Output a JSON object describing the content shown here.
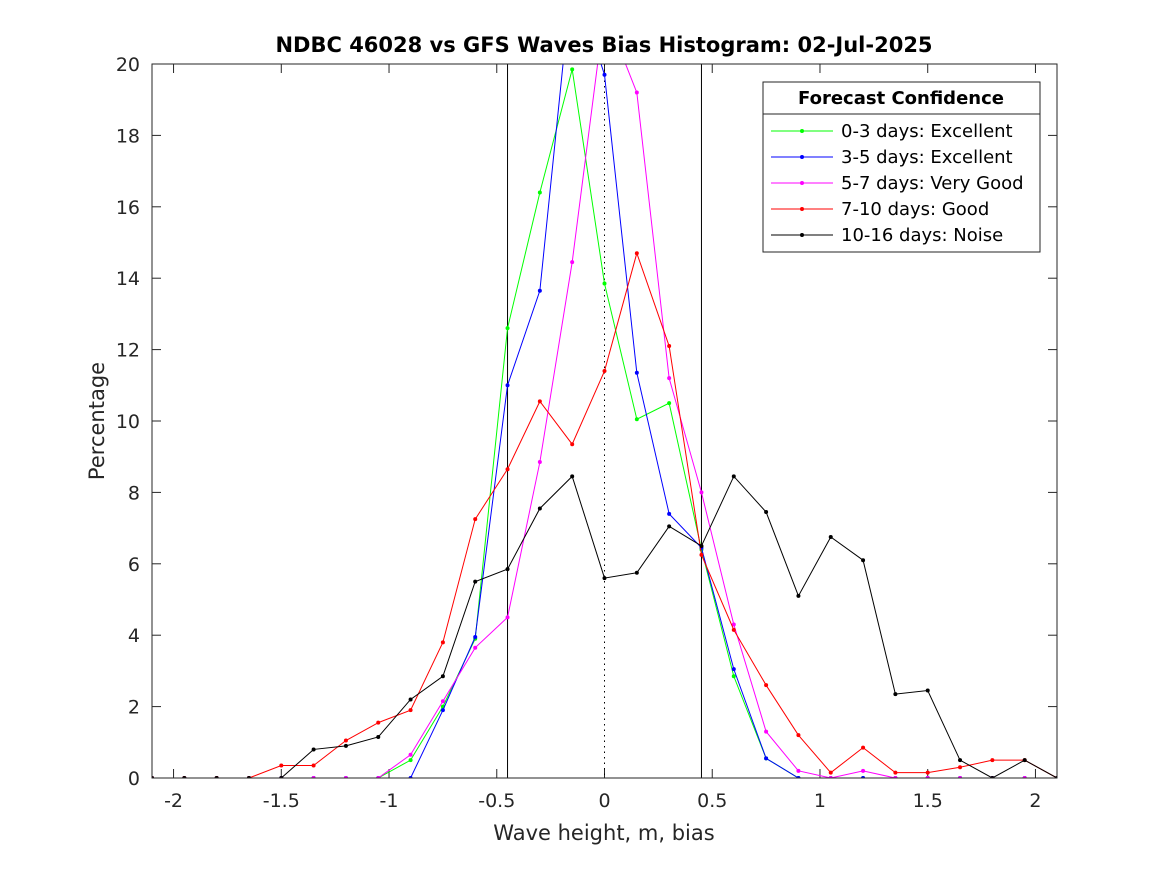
{
  "chart_data": {
    "type": "line",
    "title": "NDBC 46028 vs GFS Waves Bias Histogram: 02-Jul-2025",
    "xlabel": "Wave height, m, bias",
    "ylabel": "Percentage",
    "xlim": [
      -2.1,
      2.1
    ],
    "ylim": [
      0,
      20
    ],
    "xticks": [
      -2,
      -1.5,
      -1,
      -0.5,
      0,
      0.5,
      1,
      1.5,
      2
    ],
    "xtick_labels": [
      "-2",
      "-1.5",
      "-1",
      "-0.5",
      "0",
      "0.5",
      "1",
      "1.5",
      "2"
    ],
    "yticks": [
      0,
      2,
      4,
      6,
      8,
      10,
      12,
      14,
      16,
      18,
      20
    ],
    "ytick_labels": [
      "0",
      "2",
      "4",
      "6",
      "8",
      "10",
      "12",
      "14",
      "16",
      "18",
      "20"
    ],
    "grid": false,
    "vertical_lines": [
      {
        "x": -0.45,
        "style": "solid",
        "color": "#000000"
      },
      {
        "x": 0,
        "style": "dotted",
        "color": "#000000"
      },
      {
        "x": 0.45,
        "style": "solid",
        "color": "#000000"
      }
    ],
    "legend": {
      "title": "Forecast Confidence",
      "location": "top-right"
    },
    "x": [
      -2.1,
      -1.95,
      -1.8,
      -1.65,
      -1.5,
      -1.35,
      -1.2,
      -1.05,
      -0.9,
      -0.75,
      -0.6,
      -0.45,
      -0.3,
      -0.15,
      0,
      0.15,
      0.3,
      0.45,
      0.6,
      0.75,
      0.9,
      1.05,
      1.2,
      1.35,
      1.5,
      1.65,
      1.8,
      1.95,
      2.1
    ],
    "series": [
      {
        "name": "0-3 days: Excellent",
        "color": "#00ff00",
        "values": [
          0,
          0,
          0,
          0,
          0,
          0,
          0,
          0,
          0.5,
          2.0,
          3.9,
          12.6,
          16.4,
          19.85,
          13.85,
          10.05,
          10.5,
          6.4,
          2.85,
          0.55,
          0,
          0,
          0,
          0,
          0,
          0,
          0,
          0,
          0
        ]
      },
      {
        "name": "3-5 days: Excellent",
        "color": "#0000ff",
        "values": [
          0,
          0,
          0,
          0,
          0,
          0,
          0,
          0,
          0,
          1.9,
          3.95,
          11.0,
          13.65,
          22.5,
          19.7,
          11.35,
          7.4,
          6.45,
          3.05,
          0.55,
          0,
          0,
          0,
          0,
          0,
          0,
          0,
          0,
          0
        ]
      },
      {
        "name": "5-7 days: Very Good",
        "color": "#ff00ff",
        "values": [
          0,
          0,
          0,
          0,
          0,
          0,
          0,
          0,
          0.65,
          2.15,
          3.65,
          4.5,
          8.85,
          14.45,
          21.5,
          19.2,
          11.2,
          8.0,
          4.3,
          1.3,
          0.2,
          0,
          0.2,
          0,
          0,
          0,
          0,
          0,
          0
        ]
      },
      {
        "name": "7-10 days: Good",
        "color": "#ff0000",
        "values": [
          0,
          0,
          0,
          0,
          0.35,
          0.35,
          1.05,
          1.55,
          1.9,
          3.8,
          7.25,
          8.65,
          10.55,
          9.35,
          11.4,
          14.7,
          12.1,
          6.25,
          4.15,
          2.6,
          1.2,
          0.15,
          0.85,
          0.15,
          0.15,
          0.3,
          0.5,
          0.5,
          0
        ]
      },
      {
        "name": "10-16 days: Noise",
        "color": "#000000",
        "values": [
          0,
          0,
          0,
          0,
          0,
          0.8,
          0.9,
          1.15,
          2.2,
          2.85,
          5.5,
          5.85,
          7.55,
          8.45,
          5.6,
          5.75,
          7.05,
          6.5,
          8.45,
          7.45,
          5.1,
          6.75,
          6.1,
          2.35,
          2.45,
          0.5,
          0,
          0.5,
          0
        ]
      }
    ]
  }
}
